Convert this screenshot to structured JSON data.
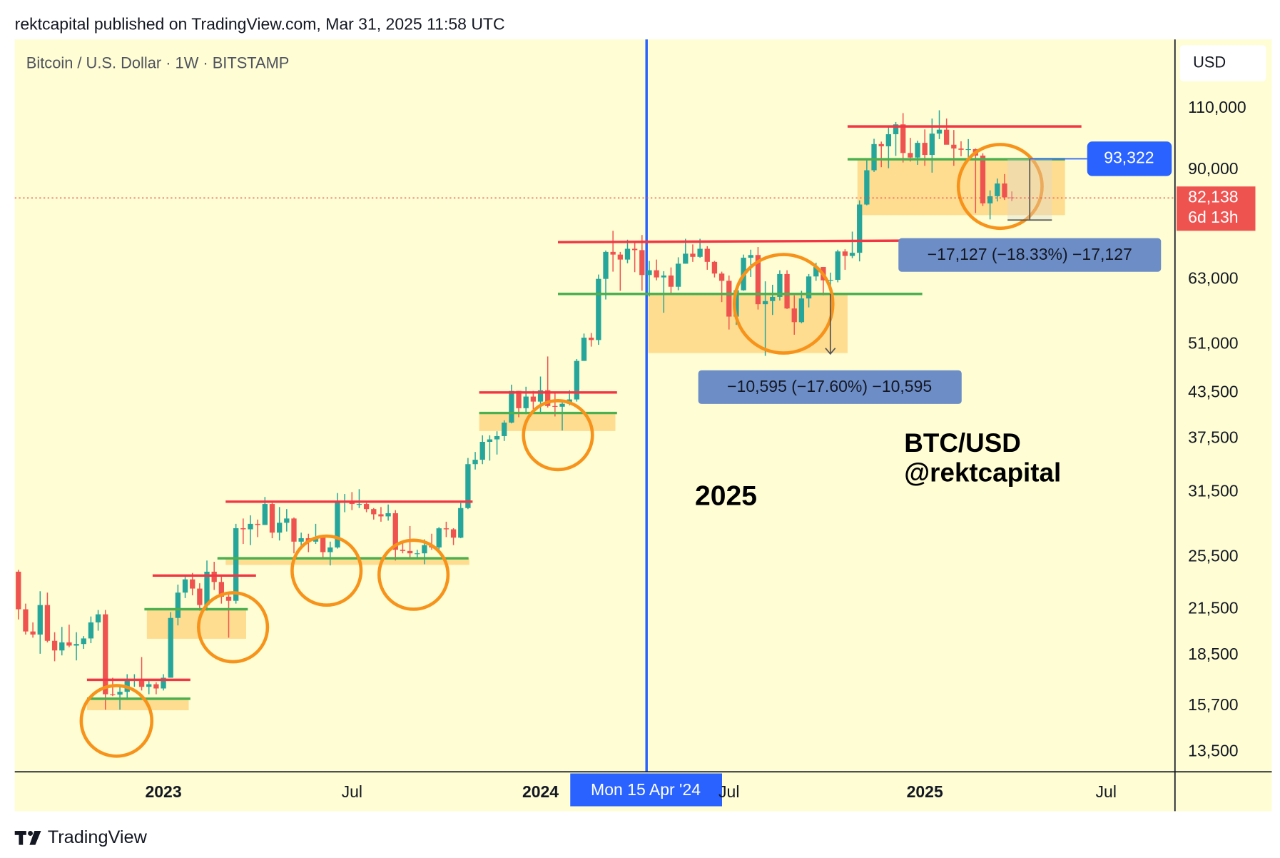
{
  "chart_data": {
    "type": "candlestick",
    "byline": "rektcapital published on TradingView.com, Mar 31, 2025 11:58 UTC",
    "title": "Bitcoin / U.S. Dollar · 1W · BITSTAMP",
    "currency": "USD",
    "footer": "TradingView",
    "crosshair_label": "Mon 15 Apr '24",
    "annotation": "2025",
    "watermark": [
      "BTC/USD",
      "@rektcapital"
    ],
    "measurements": [
      "−17,127 (−18.33%) −17,127",
      "−10,595 (−17.60%) −10,595"
    ],
    "marker_price": {
      "value": 93322,
      "label": "93,322"
    },
    "last_price": {
      "value": 82138,
      "label": "82,138"
    },
    "countdown": "6d 13h",
    "up_color": "#26a69a",
    "down_color": "#ef5350",
    "log_scale": true,
    "grid": false,
    "ylim": [
      12660,
      137700
    ],
    "yticks": [
      {
        "value": 13500,
        "label": "13,500"
      },
      {
        "value": 15700,
        "label": "15,700"
      },
      {
        "value": 18500,
        "label": "18,500"
      },
      {
        "value": 21500,
        "label": "21,500"
      },
      {
        "value": 25500,
        "label": "25,500"
      },
      {
        "value": 31500,
        "label": "31,500"
      },
      {
        "value": 37500,
        "label": "37,500"
      },
      {
        "value": 43500,
        "label": "43,500"
      },
      {
        "value": 51000,
        "label": "51,000"
      },
      {
        "value": 63000,
        "label": "63,000"
      },
      {
        "value": 90000,
        "label": "90,000"
      },
      {
        "value": 110000,
        "label": "110,000"
      }
    ],
    "categories": [
      null,
      null,
      null,
      null,
      null,
      null,
      null,
      null,
      null,
      null,
      null,
      null,
      null,
      null,
      null,
      null,
      null,
      null,
      null,
      null,
      "2023",
      null,
      null,
      null,
      null,
      null,
      null,
      null,
      null,
      null,
      null,
      null,
      null,
      null,
      null,
      null,
      null,
      null,
      null,
      null,
      null,
      null,
      null,
      null,
      null,
      null,
      "Jul",
      null,
      null,
      null,
      null,
      null,
      null,
      null,
      null,
      null,
      null,
      null,
      null,
      null,
      null,
      null,
      null,
      null,
      null,
      null,
      null,
      null,
      null,
      null,
      null,
      null,
      "2024",
      null,
      null,
      null,
      null,
      null,
      null,
      null,
      null,
      null,
      null,
      null,
      null,
      null,
      null,
      null,
      null,
      null,
      null,
      null,
      null,
      null,
      null,
      null,
      null,
      null,
      "Jul",
      null,
      null,
      null,
      null,
      null,
      null,
      null,
      null,
      null,
      null,
      null,
      null,
      null,
      null,
      null,
      null,
      null,
      null,
      null,
      null,
      null,
      null,
      null,
      null,
      null,
      null,
      "2025",
      null,
      null,
      null,
      null,
      null,
      null,
      null,
      null,
      null,
      null,
      null,
      null,
      null,
      null,
      null,
      null,
      null,
      null,
      null,
      null,
      null,
      null,
      null,
      null,
      "Jul",
      null,
      null,
      null,
      null,
      null,
      null,
      null,
      null,
      null
    ],
    "open": [
      24300,
      21500,
      20000,
      19800,
      21800,
      19400,
      18800,
      19300,
      19100,
      19200,
      19550,
      20600,
      21150,
      16300,
      16280,
      16430,
      17100,
      17100,
      16700,
      16840,
      16610,
      17200,
      20900,
      22700,
      23700,
      23000,
      21800,
      24300,
      23500,
      22400,
      22100,
      28000,
      27900,
      28400,
      28300,
      30300,
      27600,
      28500,
      28900,
      26800,
      27100,
      26800,
      27200,
      25900,
      26300,
      30500,
      30600,
      30300,
      30300,
      29800,
      29300,
      29100,
      29400,
      26100,
      26000,
      25800,
      25800,
      26500,
      26300,
      27990,
      27900,
      27150,
      29900,
      34500,
      35000,
      37100,
      37400,
      37800,
      39500,
      43800,
      41400,
      43000,
      42300,
      43900,
      41700,
      41600,
      42000,
      42600,
      48300,
      52100,
      51700,
      63100,
      68900,
      68300,
      67200,
      69600,
      69300,
      63900,
      64900,
      63400,
      63800,
      61500,
      66300,
      68500,
      67800,
      69600,
      66700,
      64200,
      62700,
      55800,
      60800,
      67600,
      68200,
      58100,
      58700,
      59500,
      64100,
      57300,
      54800,
      59200,
      63600,
      65600,
      62800,
      62900,
      69000,
      68000,
      68700,
      80400,
      89900,
      97900,
      97200,
      101100,
      104400,
      95100,
      93700,
      98300,
      94500,
      101300,
      102600,
      97700,
      96500,
      96100,
      96300,
      94300,
      80700,
      82600,
      86100,
      82300,
      null,
      null,
      null,
      null,
      null,
      null,
      null,
      null,
      null,
      null,
      null,
      null,
      null,
      null,
      null,
      null,
      null,
      null,
      null,
      null,
      null,
      null
    ],
    "high": [
      24450,
      21900,
      20600,
      22800,
      22700,
      19950,
      20300,
      20450,
      19950,
      19700,
      21000,
      21450,
      21450,
      17200,
      16750,
      17400,
      17400,
      18400,
      17050,
      16950,
      17400,
      21300,
      23300,
      23900,
      24200,
      23400,
      25200,
      25100,
      23900,
      22600,
      28400,
      28900,
      29200,
      28800,
      31000,
      30400,
      30000,
      29800,
      29000,
      27600,
      27500,
      28400,
      27400,
      26800,
      31400,
      31300,
      31500,
      31800,
      30400,
      29900,
      30000,
      30250,
      29700,
      26800,
      28200,
      26100,
      27000,
      27500,
      28100,
      28600,
      28000,
      30400,
      35200,
      35900,
      37900,
      37900,
      38400,
      39800,
      44700,
      43800,
      44400,
      43800,
      45900,
      49000,
      43500,
      42200,
      43900,
      48600,
      52800,
      52900,
      64000,
      69200,
      73800,
      68900,
      71700,
      71300,
      72800,
      66900,
      67200,
      64700,
      65500,
      67700,
      71900,
      70600,
      71900,
      70200,
      66900,
      64600,
      63800,
      61000,
      68300,
      69400,
      70000,
      62600,
      61900,
      64900,
      64900,
      59800,
      60700,
      64100,
      66500,
      65600,
      64400,
      69400,
      69500,
      73600,
      81500,
      93400,
      99600,
      98700,
      104000,
      105200,
      108300,
      99900,
      99000,
      102700,
      106400,
      109300,
      106400,
      102500,
      98800,
      99500,
      96500,
      95000,
      84200,
      87500,
      88800,
      83900,
      null,
      null,
      null,
      null,
      null,
      null,
      null,
      null,
      null,
      null,
      null,
      null,
      null,
      null,
      null,
      null,
      null,
      null,
      null,
      null,
      null,
      null
    ],
    "low": [
      20800,
      19800,
      19600,
      18600,
      19300,
      18150,
      18500,
      19000,
      18200,
      18900,
      19250,
      20050,
      15500,
      16200,
      15500,
      16000,
      16700,
      16500,
      16300,
      16300,
      16500,
      17200,
      20400,
      22300,
      22500,
      21400,
      21400,
      22900,
      21900,
      19600,
      21900,
      26600,
      26500,
      27200,
      28300,
      27100,
      26900,
      27700,
      25800,
      26300,
      25900,
      26600,
      25300,
      24800,
      26200,
      29500,
      29700,
      29900,
      29500,
      28800,
      28600,
      28700,
      25200,
      25800,
      25400,
      25300,
      24900,
      26100,
      26000,
      27200,
      26500,
      27100,
      29800,
      33900,
      34500,
      34900,
      35600,
      37200,
      39400,
      40200,
      40600,
      41300,
      40700,
      41500,
      40300,
      38500,
      41800,
      42300,
      48300,
      50600,
      50900,
      59000,
      64600,
      60700,
      66400,
      64500,
      60700,
      59600,
      62800,
      56500,
      60200,
      60800,
      66300,
      66700,
      67600,
      65000,
      63400,
      58500,
      53500,
      54300,
      60700,
      63500,
      57100,
      49100,
      56100,
      58800,
      57200,
      52600,
      54600,
      57500,
      62700,
      59800,
      58900,
      62400,
      65000,
      67500,
      66800,
      80200,
      89400,
      90800,
      90500,
      94200,
      92200,
      92500,
      91500,
      91200,
      89200,
      99500,
      97800,
      91200,
      94100,
      93400,
      78200,
      80000,
      76600,
      81200,
      81600,
      81300,
      null,
      null,
      null,
      null,
      null,
      null,
      null,
      null,
      null,
      null,
      null,
      null,
      null,
      null,
      null,
      null,
      null,
      null,
      null,
      null,
      null,
      null
    ],
    "close": [
      21500,
      20000,
      19800,
      21800,
      19400,
      18800,
      19300,
      19100,
      19200,
      19550,
      20600,
      21150,
      16300,
      16280,
      16430,
      17100,
      17100,
      16700,
      16840,
      16610,
      17200,
      20900,
      22700,
      23700,
      23000,
      21800,
      24300,
      23500,
      22400,
      22100,
      28000,
      27900,
      28400,
      28300,
      30300,
      27600,
      28500,
      28900,
      26800,
      27100,
      26800,
      27200,
      25900,
      26300,
      30500,
      30600,
      30300,
      30300,
      29800,
      29300,
      29100,
      29400,
      26100,
      26000,
      25800,
      25800,
      26500,
      26300,
      27990,
      27900,
      27150,
      29900,
      34500,
      35000,
      37100,
      37400,
      37800,
      39500,
      43800,
      41400,
      43000,
      42300,
      43900,
      41700,
      41600,
      42000,
      42600,
      48300,
      52100,
      51700,
      63100,
      68900,
      68300,
      67200,
      69600,
      69300,
      63900,
      64900,
      63400,
      63800,
      61500,
      66300,
      68500,
      67800,
      69600,
      66700,
      64200,
      62700,
      55800,
      60800,
      67600,
      68200,
      58100,
      58700,
      59500,
      64100,
      57300,
      54800,
      59200,
      63600,
      65600,
      62800,
      62900,
      69000,
      68000,
      68700,
      80400,
      89900,
      97900,
      97200,
      101100,
      104400,
      95100,
      93700,
      98300,
      94500,
      101300,
      102600,
      97700,
      96500,
      96100,
      96300,
      94300,
      80700,
      82600,
      86100,
      82300,
      82138,
      null,
      null,
      null,
      null,
      null,
      null,
      null,
      null,
      null,
      null,
      null,
      null,
      null,
      null,
      null,
      null,
      null,
      null,
      null,
      null,
      null,
      null
    ]
  }
}
